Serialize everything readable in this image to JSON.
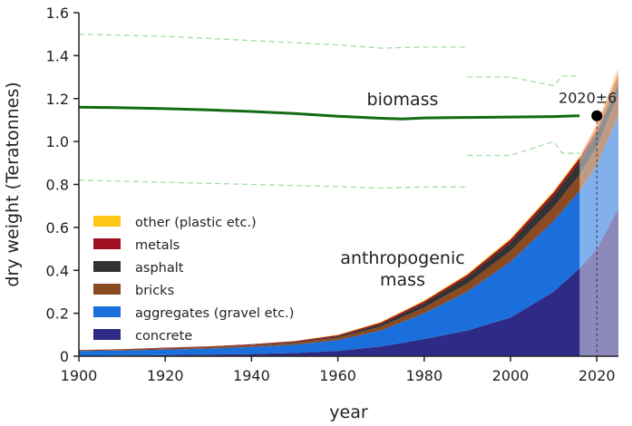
{
  "chart_data": {
    "type": "area",
    "xlabel": "year",
    "ylabel": "dry weight (Teratonnes)",
    "xlim": [
      1900,
      2025
    ],
    "ylim": [
      0,
      1.6
    ],
    "x_ticks": [
      "1900",
      "1920",
      "1940",
      "1960",
      "1980",
      "2000",
      "2020"
    ],
    "y_ticks": [
      "0",
      "0.2",
      "0.4",
      "0.6",
      "0.8",
      "1.0",
      "1.2",
      "1.4",
      "1.6"
    ],
    "grid": false,
    "legend_position": "lower-left",
    "years": [
      1900,
      1910,
      1920,
      1930,
      1940,
      1950,
      1960,
      1970,
      1980,
      1990,
      2000,
      2010,
      2016,
      2020,
      2025
    ],
    "series": [
      {
        "name": "concrete",
        "color": "#2e2a85",
        "values": [
          0.002,
          0.003,
          0.005,
          0.007,
          0.01,
          0.015,
          0.025,
          0.045,
          0.08,
          0.12,
          0.18,
          0.3,
          0.41,
          0.5,
          0.69
        ]
      },
      {
        "name": "aggregates (gravel etc.)",
        "color": "#1a6fdc",
        "values": [
          0.022,
          0.024,
          0.026,
          0.029,
          0.033,
          0.038,
          0.05,
          0.075,
          0.12,
          0.18,
          0.26,
          0.33,
          0.36,
          0.39,
          0.43
        ]
      },
      {
        "name": "bricks",
        "color": "#8a4a22",
        "values": [
          0.004,
          0.005,
          0.006,
          0.007,
          0.008,
          0.01,
          0.012,
          0.018,
          0.027,
          0.038,
          0.05,
          0.065,
          0.075,
          0.085,
          0.1
        ]
      },
      {
        "name": "asphalt",
        "color": "#333333",
        "values": [
          0.0,
          0.0,
          0.001,
          0.001,
          0.002,
          0.003,
          0.006,
          0.012,
          0.02,
          0.03,
          0.04,
          0.052,
          0.06,
          0.065,
          0.07
        ]
      },
      {
        "name": "metals",
        "color": "#a01020",
        "values": [
          0.001,
          0.001,
          0.002,
          0.002,
          0.003,
          0.004,
          0.005,
          0.007,
          0.009,
          0.011,
          0.013,
          0.016,
          0.018,
          0.02,
          0.022
        ]
      },
      {
        "name": "other (plastic etc.)",
        "color": "#ffc61a",
        "values": [
          0.0,
          0.0,
          0.0,
          0.0,
          0.0,
          0.001,
          0.002,
          0.003,
          0.004,
          0.005,
          0.006,
          0.007,
          0.008,
          0.009,
          0.01
        ]
      }
    ],
    "biomass": {
      "color": "#136b13",
      "x": [
        1900,
        1910,
        1920,
        1930,
        1940,
        1950,
        1960,
        1970,
        1975,
        1980,
        1990,
        2000,
        2010,
        2016
      ],
      "y": [
        1.16,
        1.157,
        1.153,
        1.147,
        1.14,
        1.13,
        1.118,
        1.108,
        1.105,
        1.11,
        1.112,
        1.114,
        1.116,
        1.12
      ],
      "upper_x": [
        1900,
        1910,
        1920,
        1930,
        1940,
        1950,
        1960,
        1970,
        1980,
        1990
      ],
      "upper_y": [
        1.5,
        1.495,
        1.49,
        1.48,
        1.47,
        1.46,
        1.45,
        1.435,
        1.44,
        1.44
      ],
      "lower_x": [
        1900,
        1910,
        1920,
        1930,
        1940,
        1950,
        1960,
        1970,
        1980,
        1990
      ],
      "lower_y": [
        0.82,
        0.815,
        0.81,
        0.805,
        0.8,
        0.795,
        0.79,
        0.783,
        0.788,
        0.788
      ],
      "upper2_x": [
        1990,
        2000,
        2010,
        2012,
        2016
      ],
      "upper2_y": [
        1.3,
        1.3,
        1.26,
        1.305,
        1.305
      ],
      "lower2_x": [
        1990,
        2000,
        2010,
        2012,
        2016
      ],
      "lower2_y": [
        0.935,
        0.935,
        1.0,
        0.945,
        0.945
      ]
    },
    "projection_start_year": 2016,
    "crossover": {
      "x": 2020,
      "y": 1.12,
      "label": "2020±6"
    },
    "annotations": {
      "biomass": "biomass",
      "anthropogenic_line1": "anthropogenic",
      "anthropogenic_line2": "mass"
    }
  }
}
